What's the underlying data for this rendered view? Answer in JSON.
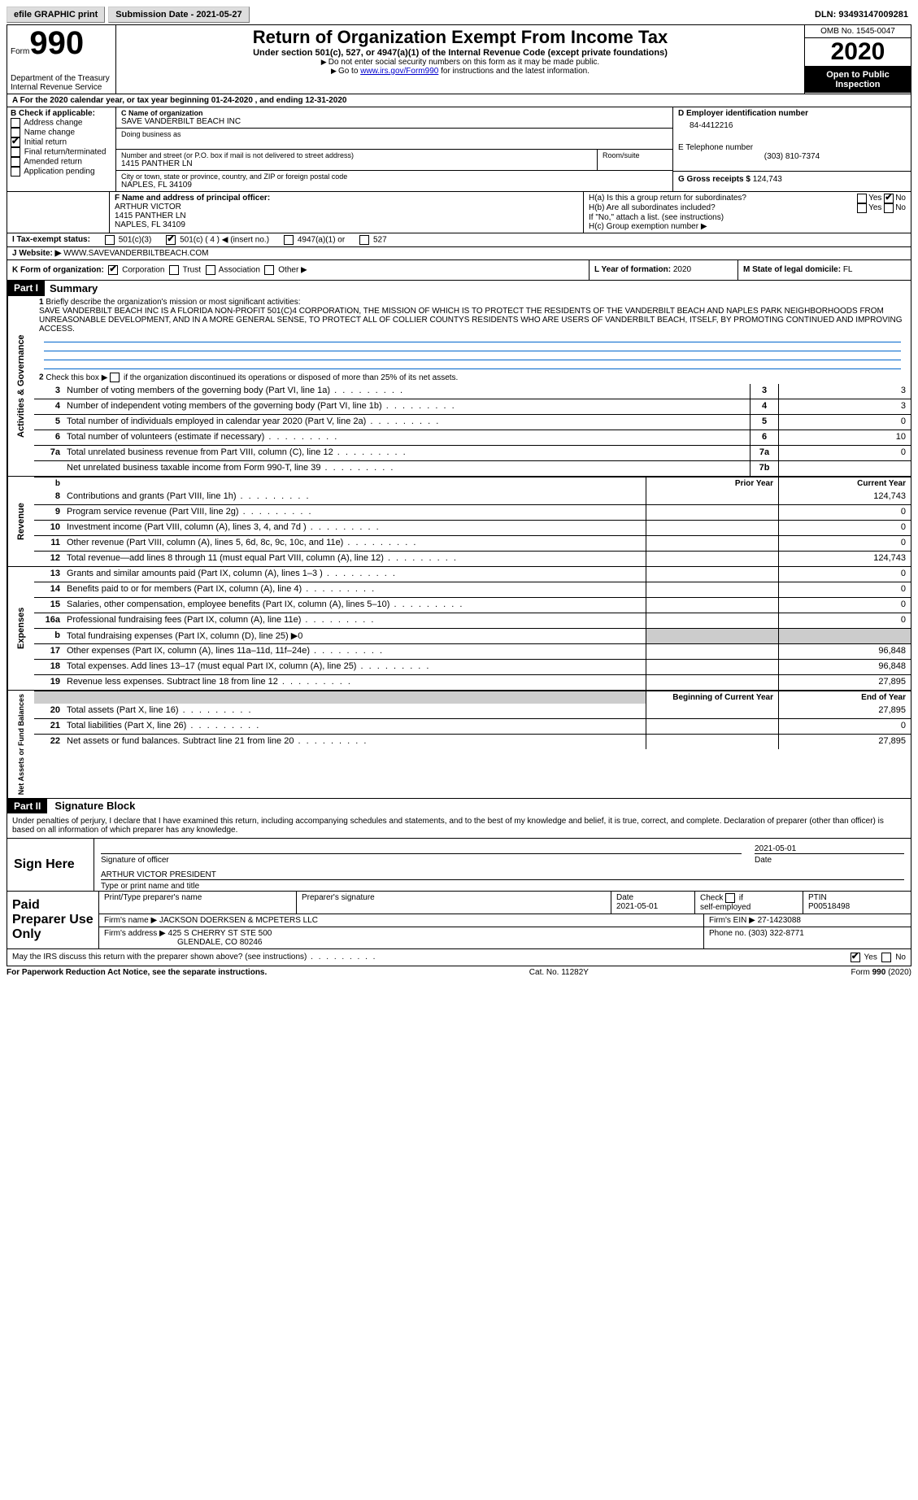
{
  "toolbar": {
    "efile": "efile GRAPHIC print",
    "submission_label": "Submission Date - 2021-05-27",
    "dln_label": "DLN: 93493147009281"
  },
  "header": {
    "form_label": "Form",
    "form_number": "990",
    "dept": "Department of the Treasury\nInternal Revenue Service",
    "title": "Return of Organization Exempt From Income Tax",
    "subtitle": "Under section 501(c), 527, or 4947(a)(1) of the Internal Revenue Code (except private foundations)",
    "note1": "Do not enter social security numbers on this form as it may be made public.",
    "note2_pre": "Go to ",
    "note2_link": "www.irs.gov/Form990",
    "note2_post": " for instructions and the latest information.",
    "omb": "OMB No. 1545-0047",
    "year": "2020",
    "inspection": "Open to Public Inspection"
  },
  "period": {
    "label_a": "A For the 2020 calendar year, or tax year beginning ",
    "begin": "01-24-2020",
    "mid": " , and ending ",
    "end": "12-31-2020"
  },
  "boxB": {
    "heading": "B Check if applicable:",
    "opts": [
      "Address change",
      "Name change",
      "Initial return",
      "Final return/terminated",
      "Amended return",
      "Application pending"
    ],
    "checked_index": 2
  },
  "boxC": {
    "label": "C Name of organization",
    "org": "SAVE VANDERBILT BEACH INC",
    "dba_label": "Doing business as",
    "addr_label": "Number and street (or P.O. box if mail is not delivered to street address)",
    "room_label": "Room/suite",
    "addr": "1415 PANTHER LN",
    "city_label": "City or town, state or province, country, and ZIP or foreign postal code",
    "city": "NAPLES, FL  34109"
  },
  "boxD": {
    "label": "D Employer identification number",
    "value": "84-4412216"
  },
  "boxE": {
    "label": "E Telephone number",
    "value": "(303) 810-7374"
  },
  "boxG": {
    "label": "G Gross receipts $",
    "value": "124,743"
  },
  "boxF": {
    "label": "F Name and address of principal officer:",
    "name": "ARTHUR VICTOR",
    "addr1": "1415 PANTHER LN",
    "addr2": "NAPLES, FL  34109"
  },
  "boxH": {
    "ha": "H(a)  Is this a group return for subordinates?",
    "hb": "H(b)  Are all subordinates included?",
    "hb_note": "If \"No,\" attach a list. (see instructions)",
    "hc": "H(c)  Group exemption number ▶",
    "yes": "Yes",
    "no": "No"
  },
  "boxI": {
    "label": "I  Tax-exempt status:",
    "c3": "501(c)(3)",
    "c": "501(c) ( 4 ) ◀ (insert no.)",
    "a1": "4947(a)(1) or",
    "s527": "527"
  },
  "boxJ": {
    "label": "J  Website: ▶",
    "value": "WWW.SAVEVANDERBILTBEACH.COM"
  },
  "boxK": {
    "label": "K Form of organization:",
    "corp": "Corporation",
    "trust": "Trust",
    "assoc": "Association",
    "other": "Other ▶"
  },
  "boxL": {
    "label": "L Year of formation:",
    "value": "2020"
  },
  "boxM": {
    "label": "M State of legal domicile:",
    "value": "FL"
  },
  "part1": {
    "header": "Part I",
    "title": "Summary",
    "line1_label": "Briefly describe the organization's mission or most significant activities:",
    "mission": "SAVE VANDERBILT BEACH INC IS A FLORIDA NON-PROFIT 501(C)4 CORPORATION, THE MISSION OF WHICH IS TO PROTECT THE RESIDENTS OF THE VANDERBILT BEACH AND NAPLES PARK NEIGHBORHOODS FROM UNREASONABLE DEVELOPMENT, AND IN A MORE GENERAL SENSE, TO PROTECT ALL OF COLLIER COUNTYS RESIDENTS WHO ARE USERS OF VANDERBILT BEACH, ITSELF, BY PROMOTING CONTINUED AND IMPROVING ACCESS.",
    "line2": "Check this box ▶     if the organization discontinued its operations or disposed of more than 25% of its net assets.",
    "lines_gov": [
      {
        "n": "3",
        "t": "Number of voting members of the governing body (Part VI, line 1a)",
        "b": "3",
        "v": "3"
      },
      {
        "n": "4",
        "t": "Number of independent voting members of the governing body (Part VI, line 1b)",
        "b": "4",
        "v": "3"
      },
      {
        "n": "5",
        "t": "Total number of individuals employed in calendar year 2020 (Part V, line 2a)",
        "b": "5",
        "v": "0"
      },
      {
        "n": "6",
        "t": "Total number of volunteers (estimate if necessary)",
        "b": "6",
        "v": "10"
      },
      {
        "n": "7a",
        "t": "Total unrelated business revenue from Part VIII, column (C), line 12",
        "b": "7a",
        "v": "0"
      },
      {
        "n": "",
        "t": "Net unrelated business taxable income from Form 990-T, line 39",
        "b": "7b",
        "v": ""
      }
    ],
    "col_prior": "Prior Year",
    "col_current": "Current Year",
    "lines_rev": [
      {
        "n": "8",
        "t": "Contributions and grants (Part VIII, line 1h)",
        "p": "",
        "c": "124,743"
      },
      {
        "n": "9",
        "t": "Program service revenue (Part VIII, line 2g)",
        "p": "",
        "c": "0"
      },
      {
        "n": "10",
        "t": "Investment income (Part VIII, column (A), lines 3, 4, and 7d )",
        "p": "",
        "c": "0"
      },
      {
        "n": "11",
        "t": "Other revenue (Part VIII, column (A), lines 5, 6d, 8c, 9c, 10c, and 11e)",
        "p": "",
        "c": "0"
      },
      {
        "n": "12",
        "t": "Total revenue—add lines 8 through 11 (must equal Part VIII, column (A), line 12)",
        "p": "",
        "c": "124,743"
      }
    ],
    "lines_exp": [
      {
        "n": "13",
        "t": "Grants and similar amounts paid (Part IX, column (A), lines 1–3 )",
        "p": "",
        "c": "0"
      },
      {
        "n": "14",
        "t": "Benefits paid to or for members (Part IX, column (A), line 4)",
        "p": "",
        "c": "0"
      },
      {
        "n": "15",
        "t": "Salaries, other compensation, employee benefits (Part IX, column (A), lines 5–10)",
        "p": "",
        "c": "0"
      },
      {
        "n": "16a",
        "t": "Professional fundraising fees (Part IX, column (A), line 11e)",
        "p": "",
        "c": "0"
      },
      {
        "n": "b",
        "t": "Total fundraising expenses (Part IX, column (D), line 25) ▶0",
        "p": "grey",
        "c": "grey"
      },
      {
        "n": "17",
        "t": "Other expenses (Part IX, column (A), lines 11a–11d, 11f–24e)",
        "p": "",
        "c": "96,848"
      },
      {
        "n": "18",
        "t": "Total expenses. Add lines 13–17 (must equal Part IX, column (A), line 25)",
        "p": "",
        "c": "96,848"
      },
      {
        "n": "19",
        "t": "Revenue less expenses. Subtract line 18 from line 12",
        "p": "",
        "c": "27,895"
      }
    ],
    "col_begin": "Beginning of Current Year",
    "col_end": "End of Year",
    "lines_net": [
      {
        "n": "20",
        "t": "Total assets (Part X, line 16)",
        "p": "",
        "c": "27,895"
      },
      {
        "n": "21",
        "t": "Total liabilities (Part X, line 26)",
        "p": "",
        "c": "0"
      },
      {
        "n": "22",
        "t": "Net assets or fund balances. Subtract line 21 from line 20",
        "p": "",
        "c": "27,895"
      }
    ],
    "side_gov": "Activities & Governance",
    "side_rev": "Revenue",
    "side_exp": "Expenses",
    "side_net": "Net Assets or Fund Balances"
  },
  "part2": {
    "header": "Part II",
    "title": "Signature Block",
    "declaration": "Under penalties of perjury, I declare that I have examined this return, including accompanying schedules and statements, and to the best of my knowledge and belief, it is true, correct, and complete. Declaration of preparer (other than officer) is based on all information of which preparer has any knowledge.",
    "sign_here": "Sign Here",
    "sig_officer": "Signature of officer",
    "sig_date": "2021-05-01",
    "date_label": "Date",
    "officer_name": "ARTHUR VICTOR PRESIDENT",
    "type_name": "Type or print name and title",
    "paid_label": "Paid Preparer Use Only",
    "print_name_label": "Print/Type preparer's name",
    "prep_sig_label": "Preparer's signature",
    "prep_date_label": "Date",
    "prep_date": "2021-05-01",
    "self_emp": "Check       if self-employed",
    "ptin_label": "PTIN",
    "ptin": "P00518498",
    "firm_name_label": "Firm's name    ▶",
    "firm_name": "JACKSON DOERKSEN & MCPETERS LLC",
    "firm_ein_label": "Firm's EIN ▶",
    "firm_ein": "27-1423088",
    "firm_addr_label": "Firm's address ▶",
    "firm_addr1": "425 S CHERRY ST STE 500",
    "firm_addr2": "GLENDALE, CO  80246",
    "phone_label": "Phone no.",
    "phone": "(303) 322-8771",
    "discuss": "May the IRS discuss this return with the preparer shown above? (see instructions)",
    "yes": "Yes",
    "no": "No"
  },
  "footer": {
    "pra": "For Paperwork Reduction Act Notice, see the separate instructions.",
    "cat": "Cat. No. 11282Y",
    "form": "Form 990 (2020)"
  }
}
